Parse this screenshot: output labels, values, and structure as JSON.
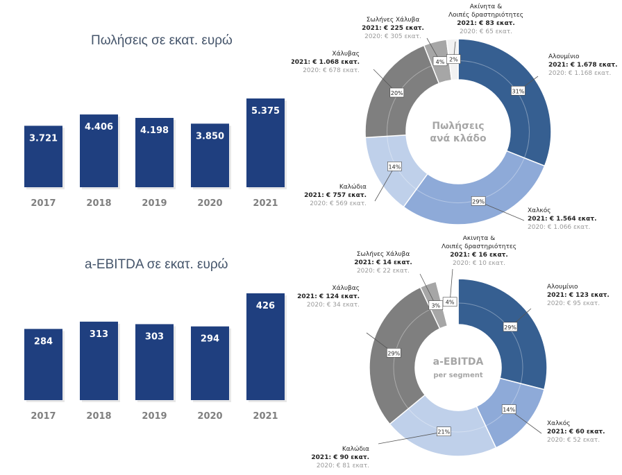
{
  "chart_data": [
    {
      "type": "bar",
      "title": "Πωλήσεις σε εκατ. ευρώ",
      "categories": [
        "2017",
        "2018",
        "2019",
        "2020",
        "2021"
      ],
      "value_labels": [
        "3.721",
        "4.406",
        "4.198",
        "3.850",
        "5.375"
      ],
      "values": [
        3721,
        4406,
        4198,
        3850,
        5375
      ],
      "color": "#1f3f7f"
    },
    {
      "type": "bar",
      "title": "a-EBITDA σε εκατ. ευρώ",
      "categories": [
        "2017",
        "2018",
        "2019",
        "2020",
        "2021"
      ],
      "value_labels": [
        "284",
        "313",
        "303",
        "294",
        "426"
      ],
      "values": [
        284,
        313,
        303,
        294,
        426
      ],
      "color": "#1f3f7f"
    },
    {
      "type": "pie",
      "center_label": [
        "Πωλήσεις",
        "ανά κλάδο"
      ],
      "segments": [
        {
          "name": "Αλουμίνιο",
          "pct": 31,
          "pct_label": "31%",
          "current": "2021: € 1.678 εκατ.",
          "previous": "2020: € 1.168 εκατ.",
          "color": "#365f91"
        },
        {
          "name": "Χαλκός",
          "pct": 29,
          "pct_label": "29%",
          "current": "2021: € 1.564 εκατ.",
          "previous": "2020: € 1.066 εκατ.",
          "color": "#8eaad8"
        },
        {
          "name": "Καλώδια",
          "pct": 14,
          "pct_label": "14%",
          "current": "2021: € 757 εκατ.",
          "previous": "2020: € 569 εκατ.",
          "color": "#bfd0ea"
        },
        {
          "name": "Χάλυβας",
          "pct": 20,
          "pct_label": "20%",
          "current": "2021: € 1.068 εκατ.",
          "previous": "2020: € 678 εκατ.",
          "color": "#7f7f7f"
        },
        {
          "name": "Σωλήνες Χάλυβα",
          "pct": 4,
          "pct_label": "4%",
          "current": "2021: € 225 εκατ.",
          "previous": "2020: € 305 εκατ.",
          "color": "#a6a6a6"
        },
        {
          "name": "Ακίνητα & Λοιπές δραστηριότητες",
          "name_lines": [
            "Ακίνητα &",
            "Λοιπές δραστηριότητες"
          ],
          "pct": 2,
          "pct_label": "2%",
          "current": "2021: € 83 εκατ.",
          "previous": "2020: € 65 εκατ.",
          "color": "#f2f2f2"
        }
      ]
    },
    {
      "type": "pie",
      "center_label": [
        "a-EBITDA",
        "per segment"
      ],
      "segments": [
        {
          "name": "Αλουμίνιο",
          "pct": 29,
          "pct_label": "29%",
          "current": "2021: € 123 εκατ.",
          "previous": "2020: € 95 εκατ.",
          "color": "#365f91"
        },
        {
          "name": "Χαλκός",
          "pct": 14,
          "pct_label": "14%",
          "current": "2021: € 60 εκατ.",
          "previous": "2020: € 52 εκατ.",
          "color": "#8eaad8"
        },
        {
          "name": "Καλώδια",
          "pct": 21,
          "pct_label": "21%",
          "current": "2021: € 90 εκατ.",
          "previous": "2020: € 81 εκατ.",
          "color": "#bfd0ea"
        },
        {
          "name": "Χάλυβας",
          "pct": 29,
          "pct_label": "29%",
          "current": "2021: € 124 εκατ.",
          "previous": "2020: € 34 εκατ.",
          "color": "#7f7f7f"
        },
        {
          "name": "Σωλήνες Χάλυβα",
          "pct": 3,
          "pct_label": "3%",
          "current": "2021: € 14 εκατ.",
          "previous": "2020: € 22 εκατ.",
          "color": "#a6a6a6"
        },
        {
          "name": "Ακίνητα & Λοιπές δραστηριότητες",
          "name_lines": [
            "Ακίνητα &",
            "Λοιπές δραστηριότητες"
          ],
          "pct": 4,
          "pct_label": "4%",
          "current": "2021: € 16 εκατ.",
          "previous": "2020: € 10 εκατ.",
          "color": "#ffffff"
        }
      ]
    }
  ]
}
